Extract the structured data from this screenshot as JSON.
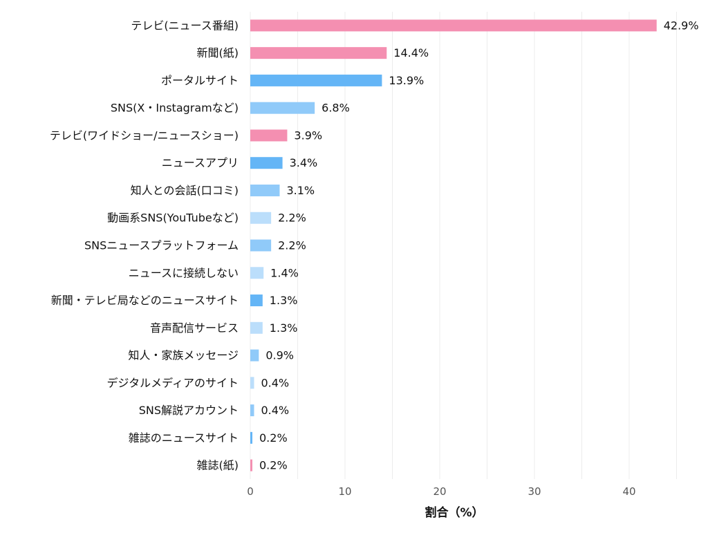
{
  "chart_data": {
    "type": "bar",
    "orientation": "horizontal",
    "xlabel": "割合（%）",
    "ylabel": "",
    "xlim": [
      0,
      45
    ],
    "xticks": [
      0,
      10,
      20,
      30,
      40
    ],
    "grid": true,
    "categories": [
      "テレビ(ニュース番組)",
      "新聞(紙)",
      "ポータルサイト",
      "SNS(X・Instagramなど)",
      "テレビ(ワイドショー/ニュースショー)",
      "ニュースアプリ",
      "知人との会話(口コミ)",
      "動画系SNS(YouTubeなど)",
      "SNSニュースプラットフォーム",
      "ニュースに接続しない",
      "新聞・テレビ局などのニュースサイト",
      "音声配信サービス",
      "知人・家族メッセージ",
      "デジタルメディアのサイト",
      "SNS解説アカウント",
      "雑誌のニュースサイト",
      "雑誌(紙)"
    ],
    "values": [
      42.9,
      14.4,
      13.9,
      6.8,
      3.9,
      3.4,
      3.1,
      2.2,
      2.2,
      1.4,
      1.3,
      1.3,
      0.9,
      0.4,
      0.4,
      0.2,
      0.2
    ],
    "value_labels": [
      "42.9%",
      "14.4%",
      "13.9%",
      "6.8%",
      "3.9%",
      "3.4%",
      "3.1%",
      "2.2%",
      "2.2%",
      "1.4%",
      "1.3%",
      "1.3%",
      "0.9%",
      "0.4%",
      "0.4%",
      "0.2%",
      "0.2%"
    ],
    "bar_colors": [
      "#f48fb1",
      "#f48fb1",
      "#64b5f6",
      "#90caf9",
      "#f48fb1",
      "#64b5f6",
      "#90caf9",
      "#bbdefb",
      "#90caf9",
      "#bbdefb",
      "#64b5f6",
      "#bbdefb",
      "#90caf9",
      "#bbdefb",
      "#90caf9",
      "#64b5f6",
      "#f48fb1"
    ]
  }
}
